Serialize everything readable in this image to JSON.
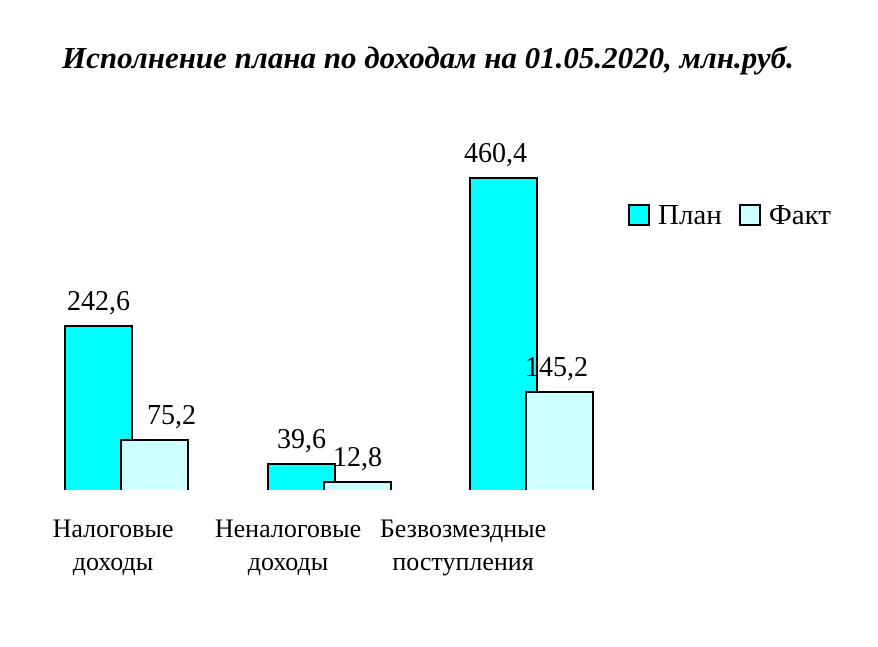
{
  "title": "Исполнение плана по доходам на 01.05.2020, млн.руб.",
  "legend": {
    "items": [
      {
        "key": "plan",
        "label": "План",
        "color": "#00FFFF"
      },
      {
        "key": "fact",
        "label": "Факт",
        "color": "#CCFFFF"
      }
    ]
  },
  "chart_data": {
    "type": "bar",
    "title": "Исполнение плана по доходам на 01.05.2020, млн.руб.",
    "units": "млн.руб.",
    "categories": [
      "Налоговые доходы",
      "Неналоговые доходы",
      "Безвозмездные поступления"
    ],
    "categories_display": [
      "Налоговые\nдоходы",
      "Неналоговые\nдоходы",
      "Безвозмездные\nпоступления"
    ],
    "series": [
      {
        "key": "plan",
        "name": "План",
        "color": "#00FFFF",
        "values": [
          242.6,
          39.6,
          460.4
        ],
        "value_labels": [
          "242,6",
          "39,6",
          "460,4"
        ]
      },
      {
        "key": "fact",
        "name": "Факт",
        "color": "#CCFFFF",
        "values": [
          75.2,
          12.8,
          145.2
        ],
        "value_labels": [
          "75,2",
          "12,8",
          "145,2"
        ]
      }
    ],
    "ylim": [
      0,
      460.4
    ],
    "grid": false,
    "axes_visible": false,
    "data_labels": true,
    "legend_position": "right",
    "bar_border_color": "#000000",
    "text_color": "#000000",
    "background_color": "#FFFFFF"
  }
}
